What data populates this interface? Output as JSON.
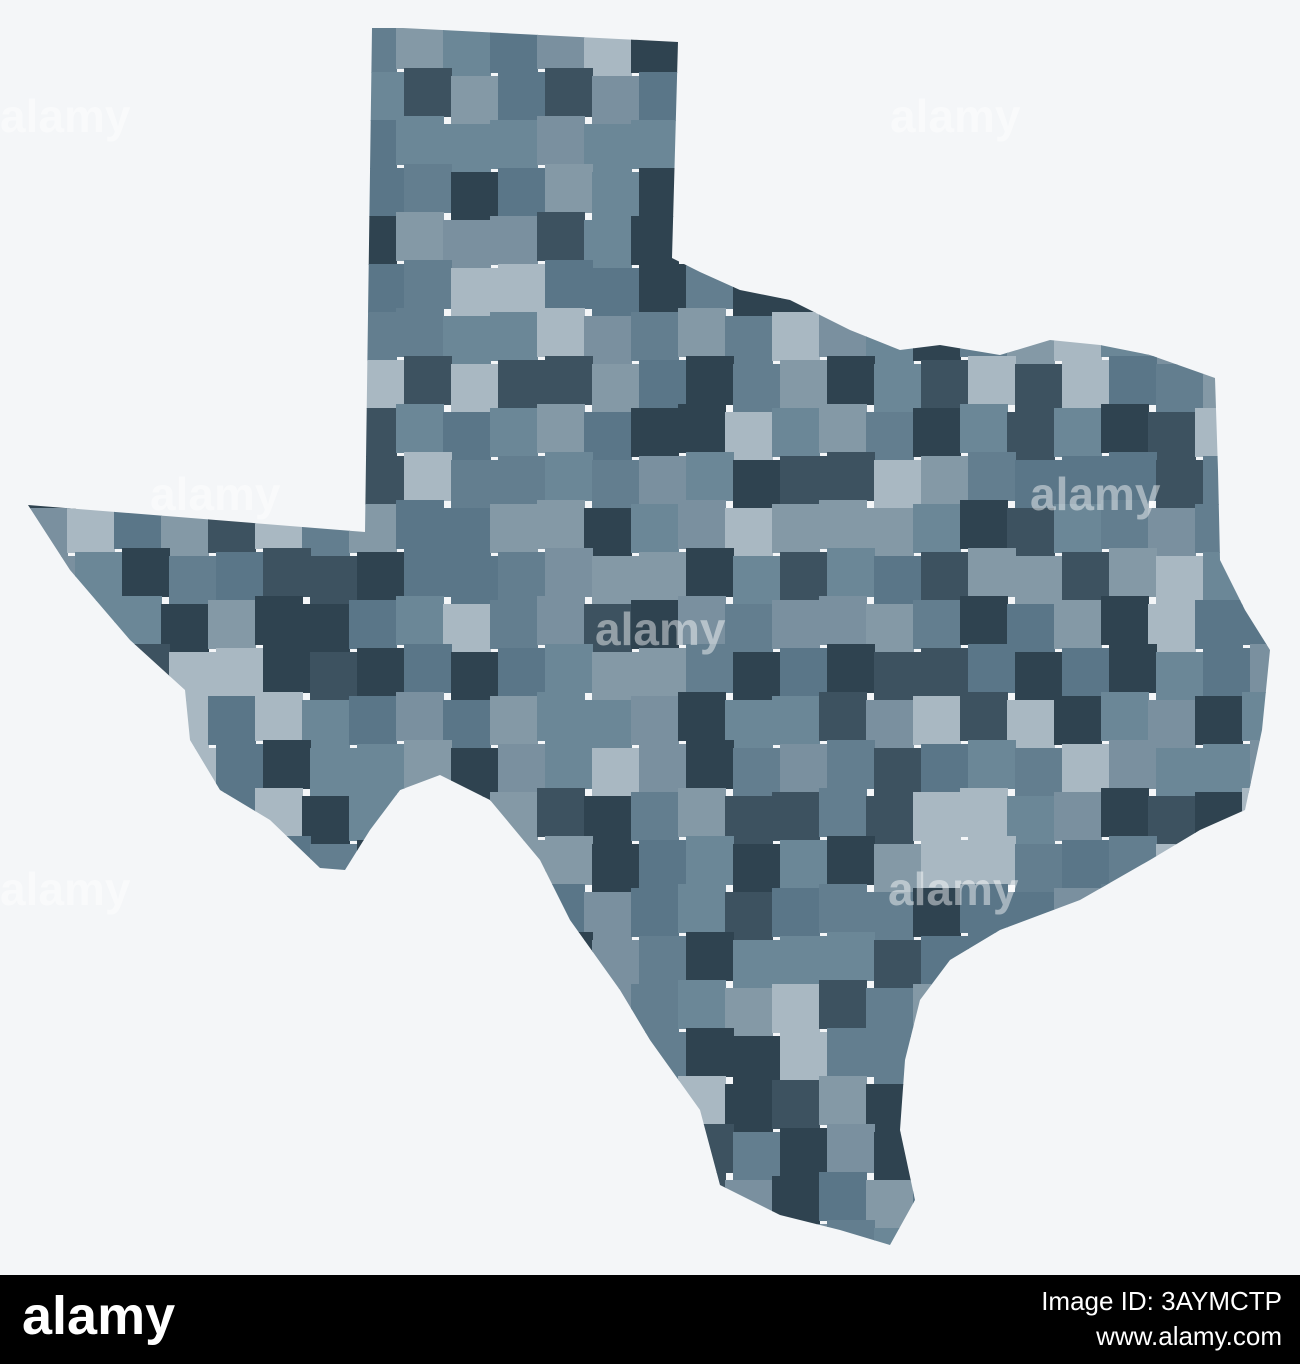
{
  "watermark": "alamy",
  "footer": {
    "logo": "alamy",
    "image_id": "Image ID: 3AYMCTP",
    "url": "www.alamy.com"
  }
}
